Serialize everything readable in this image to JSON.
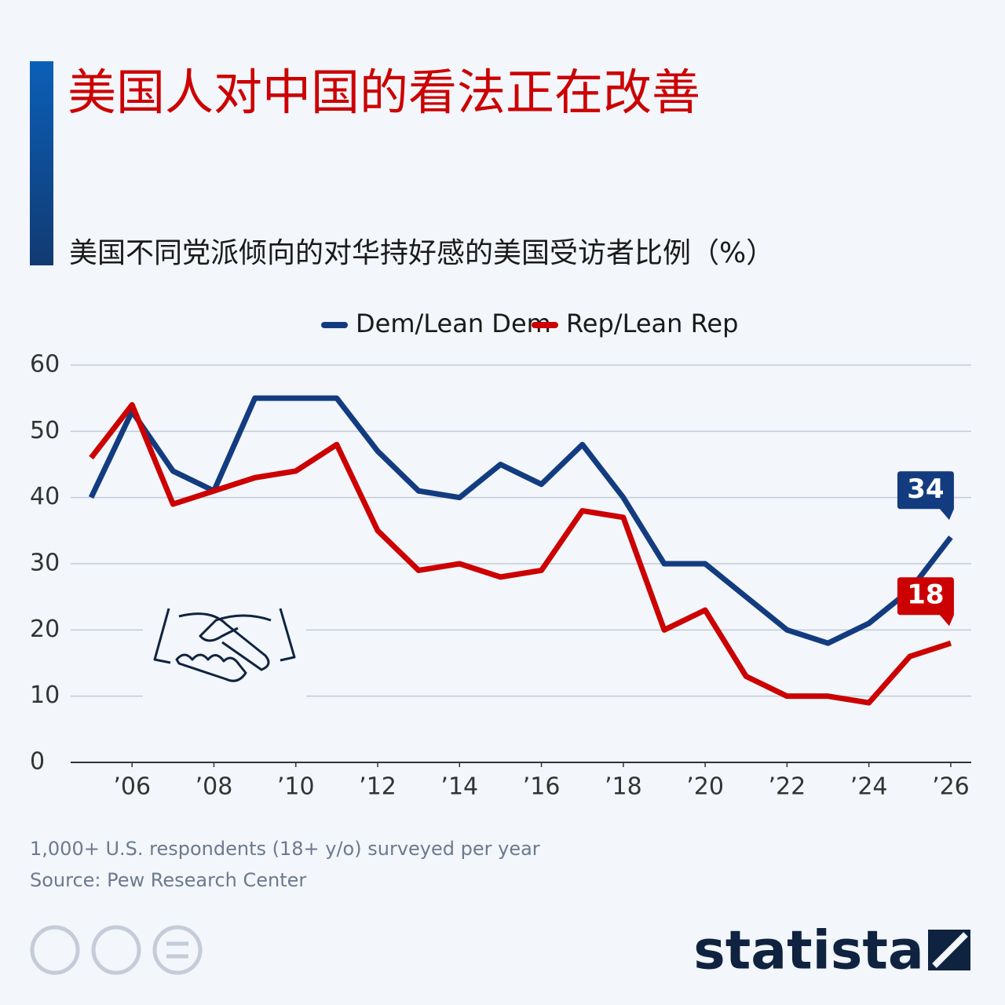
{
  "chart_data": {
    "type": "line",
    "title": "美国人对中国的看法正在改善",
    "subtitle": "美国不同党派倾向的对华持好感的美国受访者比例（%）",
    "x": [
      2005,
      2006,
      2007,
      2008,
      2009,
      2010,
      2011,
      2012,
      2013,
      2014,
      2015,
      2016,
      2017,
      2018,
      2019,
      2020,
      2021,
      2022,
      2023,
      2024,
      2025,
      2026
    ],
    "series": [
      {
        "name": "Dem/Lean Dem",
        "color": "#133c80",
        "values": [
          40,
          53,
          44,
          41,
          55,
          55,
          55,
          47,
          41,
          40,
          45,
          42,
          48,
          40,
          30,
          30,
          25,
          20,
          18,
          21,
          26,
          34
        ]
      },
      {
        "name": "Rep/Lean Rep",
        "color": "#cc0000",
        "values": [
          46,
          54,
          39,
          41,
          43,
          44,
          48,
          35,
          29,
          30,
          28,
          29,
          38,
          37,
          20,
          23,
          13,
          10,
          10,
          9,
          16,
          18
        ]
      }
    ],
    "xlim": [
      2004.5,
      2026.5
    ],
    "xticks": [
      {
        "value": 2006,
        "label": "’06"
      },
      {
        "value": 2008,
        "label": "’08"
      },
      {
        "value": 2010,
        "label": "’10"
      },
      {
        "value": 2012,
        "label": "’12"
      },
      {
        "value": 2014,
        "label": "’14"
      },
      {
        "value": 2016,
        "label": "’16"
      },
      {
        "value": 2018,
        "label": "’18"
      },
      {
        "value": 2020,
        "label": "’20"
      },
      {
        "value": 2022,
        "label": "’22"
      },
      {
        "value": 2024,
        "label": "’24"
      },
      {
        "value": 2026,
        "label": "’26"
      }
    ],
    "ylim": [
      0,
      60
    ],
    "yticks": [
      0,
      10,
      20,
      30,
      40,
      50,
      60
    ],
    "grid": true,
    "notes": [
      "1,000+ U.S. respondents (18+ y/o) surveyed per year",
      "Source: Pew Research Center"
    ],
    "brand": "statista"
  }
}
